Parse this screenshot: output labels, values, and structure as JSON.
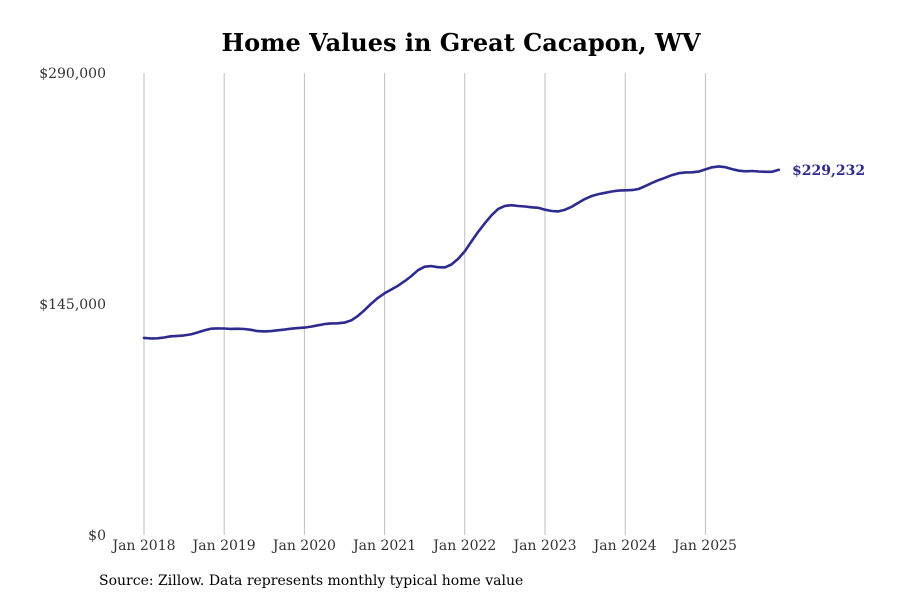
{
  "chart_data": {
    "type": "line",
    "title": "Home Values in Great Cacapon, WV",
    "xlabel": "",
    "ylabel": "",
    "ylim": [
      0,
      290000
    ],
    "y_ticks": [
      "$0",
      "$145,000",
      "$290,000"
    ],
    "y_tick_values": [
      0,
      145000,
      290000
    ],
    "x_ticks": [
      "Jan 2018",
      "Jan 2019",
      "Jan 2020",
      "Jan 2021",
      "Jan 2022",
      "Jan 2023",
      "Jan 2024",
      "Jan 2025"
    ],
    "x_tick_values": [
      2018,
      2019,
      2020,
      2021,
      2022,
      2023,
      2024,
      2025
    ],
    "grid": "vertical",
    "last_value_label": "$229,232",
    "color": "#2e2b8f",
    "series": [
      {
        "name": "Typical home value",
        "x": [
          2018.0,
          2018.083,
          2018.167,
          2018.25,
          2018.333,
          2018.417,
          2018.5,
          2018.583,
          2018.667,
          2018.75,
          2018.833,
          2018.917,
          2019.0,
          2019.083,
          2019.167,
          2019.25,
          2019.333,
          2019.417,
          2019.5,
          2019.583,
          2019.667,
          2019.75,
          2019.833,
          2019.917,
          2020.0,
          2020.083,
          2020.167,
          2020.25,
          2020.333,
          2020.417,
          2020.5,
          2020.583,
          2020.667,
          2020.75,
          2020.833,
          2020.917,
          2021.0,
          2021.083,
          2021.167,
          2021.25,
          2021.333,
          2021.417,
          2021.5,
          2021.583,
          2021.667,
          2021.75,
          2021.833,
          2021.917,
          2022.0,
          2022.083,
          2022.167,
          2022.25,
          2022.333,
          2022.417,
          2022.5,
          2022.583,
          2022.667,
          2022.75,
          2022.833,
          2022.917,
          2023.0,
          2023.083,
          2023.167,
          2023.25,
          2023.333,
          2023.417,
          2023.5,
          2023.583,
          2023.667,
          2023.75,
          2023.833,
          2023.917,
          2024.0,
          2024.083,
          2024.167,
          2024.25,
          2024.333,
          2024.417,
          2024.5,
          2024.583,
          2024.667,
          2024.75,
          2024.833,
          2024.917,
          2025.0,
          2025.083,
          2025.167,
          2025.25,
          2025.333,
          2025.417,
          2025.5,
          2025.583,
          2025.667,
          2025.75,
          2025.833,
          2025.917
        ],
        "values": [
          123700,
          123400,
          123500,
          124000,
          124700,
          125000,
          125300,
          125900,
          127100,
          128400,
          129500,
          129700,
          129600,
          129400,
          129500,
          129300,
          128800,
          128000,
          127800,
          128000,
          128500,
          128900,
          129500,
          129900,
          130200,
          130800,
          131600,
          132400,
          132800,
          132900,
          133300,
          134700,
          137500,
          141200,
          145200,
          148800,
          151700,
          154100,
          156500,
          159400,
          162500,
          166200,
          168400,
          168800,
          168100,
          168000,
          169800,
          173300,
          178100,
          184300,
          190300,
          195700,
          200700,
          204700,
          206600,
          207000,
          206500,
          206200,
          205700,
          205400,
          204200,
          203400,
          203100,
          204200,
          206000,
          208500,
          211000,
          212800,
          214000,
          214800,
          215600,
          216200,
          216400,
          216500,
          217200,
          219000,
          221000,
          222800,
          224300,
          225900,
          227100,
          227600,
          227700,
          228100,
          229500,
          230800,
          231400,
          230900,
          229700,
          228700,
          228300,
          228500,
          228200,
          228000,
          228000,
          229232
        ]
      }
    ]
  },
  "source": "Source: Zillow. Data represents monthly typical home value"
}
